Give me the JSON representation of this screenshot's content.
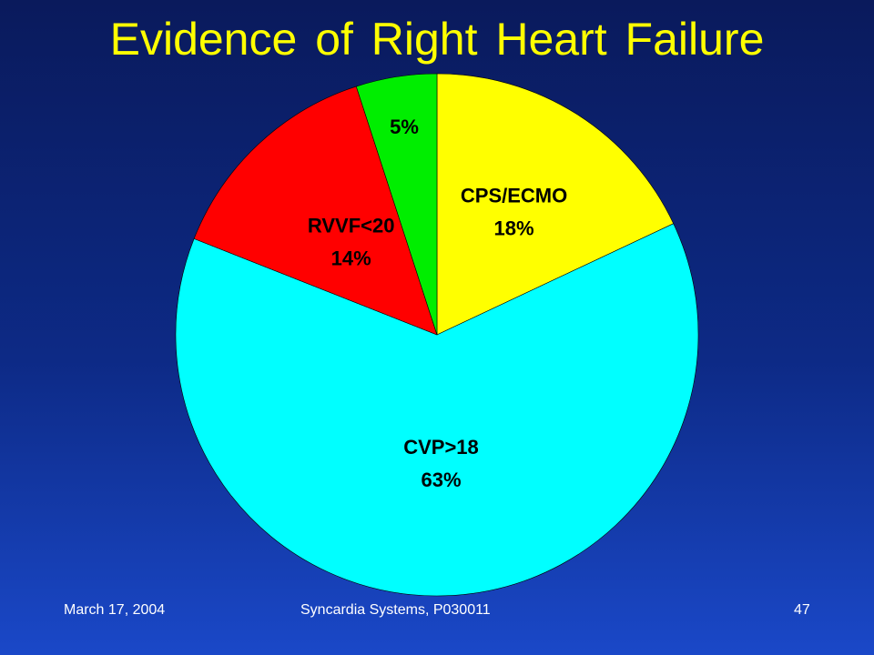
{
  "slide": {
    "title": "Evidence of Right Heart Failure",
    "footer_date": "March 17, 2004",
    "footer_center": "Syncardia Systems, P030011",
    "page_number": "47"
  },
  "chart_data": {
    "type": "pie",
    "title": "Evidence of Right Heart Failure",
    "slices": [
      {
        "name": "CPS/ECMO",
        "value": 18,
        "value_label": "18%",
        "color": "#ffff00"
      },
      {
        "name": "CVP>18",
        "value": 63,
        "value_label": "63%",
        "color": "#00ffff"
      },
      {
        "name": "RVVF<20",
        "value": 14,
        "value_label": "14%",
        "color": "#ff0000"
      },
      {
        "name": "",
        "value": 5,
        "value_label": "5%",
        "color": "#00ee00"
      }
    ],
    "start": "12 o'clock",
    "direction": "clockwise",
    "legend": "none"
  }
}
